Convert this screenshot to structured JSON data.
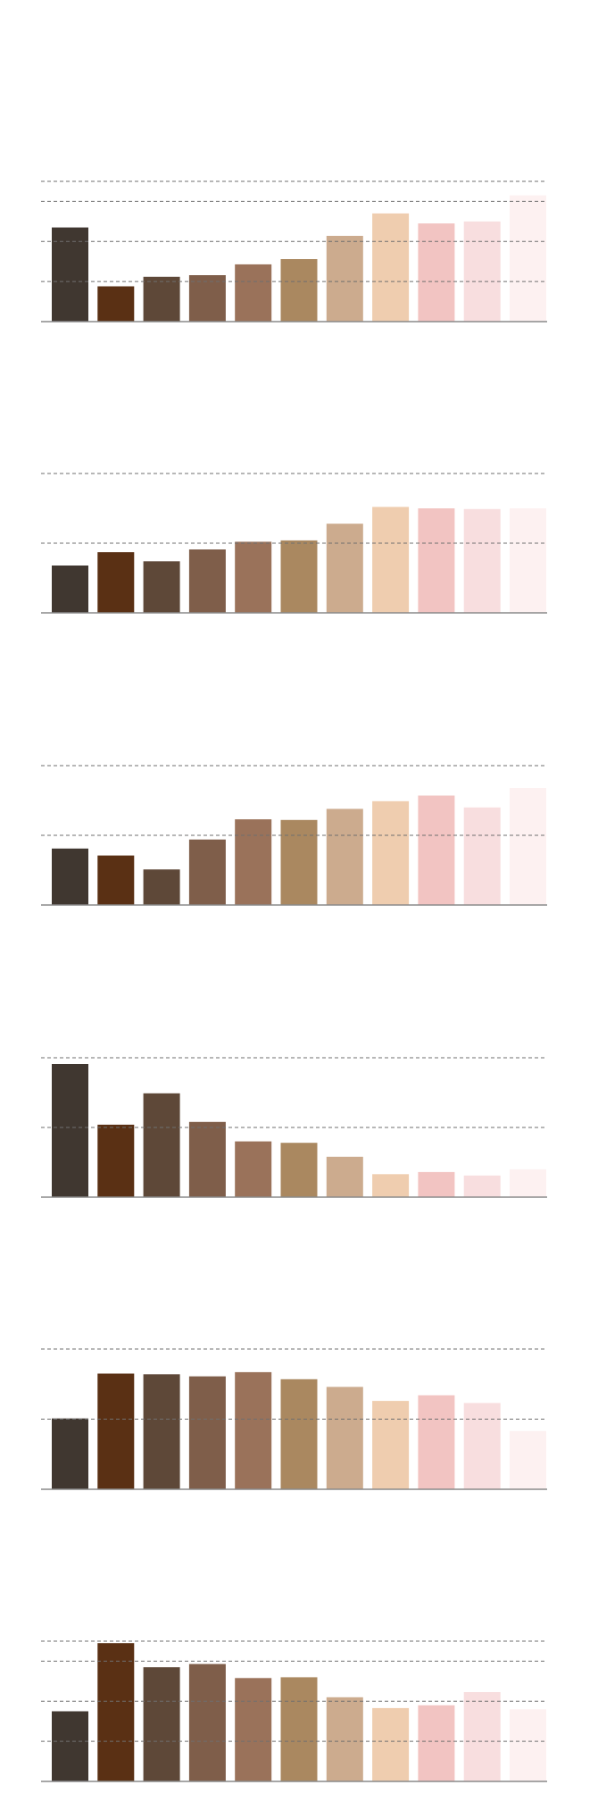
{
  "palette": [
    "#403730",
    "#5a3014",
    "#5e4838",
    "#7f5e4a",
    "#9a725a",
    "#aa8860",
    "#ccab8e",
    "#efcdaf",
    "#f2c4c2",
    "#f8dedf",
    "#fdf1f1"
  ],
  "colors": {
    "grid": "#6f6f6f",
    "baseline": "#8a8a8a",
    "background": "#ffffff"
  },
  "chart_data": [
    {
      "type": "bar",
      "ylim": [
        0,
        3.5
      ],
      "grid": true,
      "gridlines": [
        1,
        2,
        3,
        3.5
      ],
      "values": [
        2.35,
        0.88,
        1.12,
        1.16,
        1.43,
        1.56,
        2.14,
        2.7,
        2.45,
        2.5,
        3.15
      ]
    },
    {
      "type": "bar",
      "ylim": [
        0,
        2
      ],
      "grid": true,
      "gridlines": [
        1,
        2
      ],
      "values": [
        0.68,
        0.87,
        0.74,
        0.91,
        1.02,
        1.04,
        1.28,
        1.52,
        1.5,
        1.49,
        1.5
      ]
    },
    {
      "type": "bar",
      "ylim": [
        0,
        2
      ],
      "grid": true,
      "gridlines": [
        1,
        2
      ],
      "values": [
        0.81,
        0.71,
        0.51,
        0.94,
        1.23,
        1.22,
        1.38,
        1.49,
        1.57,
        1.4,
        1.68
      ]
    },
    {
      "type": "bar",
      "ylim": [
        0,
        2
      ],
      "grid": true,
      "gridlines": [
        1,
        2
      ],
      "values": [
        1.91,
        1.04,
        1.49,
        1.08,
        0.8,
        0.78,
        0.58,
        0.33,
        0.36,
        0.31,
        0.4
      ]
    },
    {
      "type": "bar",
      "ylim": [
        0,
        2
      ],
      "grid": true,
      "gridlines": [
        1,
        2
      ],
      "values": [
        1.01,
        1.65,
        1.64,
        1.61,
        1.67,
        1.57,
        1.46,
        1.26,
        1.34,
        1.23,
        0.83
      ]
    },
    {
      "type": "bar",
      "ylim": [
        0,
        3.5
      ],
      "grid": true,
      "gridlines": [
        1,
        2,
        3,
        3.5
      ],
      "values": [
        1.75,
        3.45,
        2.85,
        2.93,
        2.58,
        2.6,
        2.1,
        1.83,
        1.9,
        2.23,
        1.8
      ]
    }
  ]
}
